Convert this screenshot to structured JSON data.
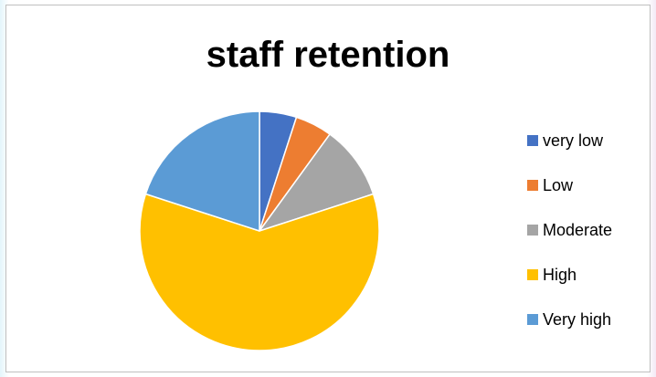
{
  "chart_data": {
    "type": "pie",
    "title": "staff retention",
    "categories": [
      "very low",
      "Low",
      "Moderate",
      "High",
      "Very high"
    ],
    "values": [
      5,
      5,
      10,
      60,
      20
    ],
    "colors": [
      "#4472C4",
      "#ED7D31",
      "#A5A5A5",
      "#FFC000",
      "#5B9BD5"
    ],
    "legend_position": "right",
    "start_angle": "top, clockwise"
  }
}
